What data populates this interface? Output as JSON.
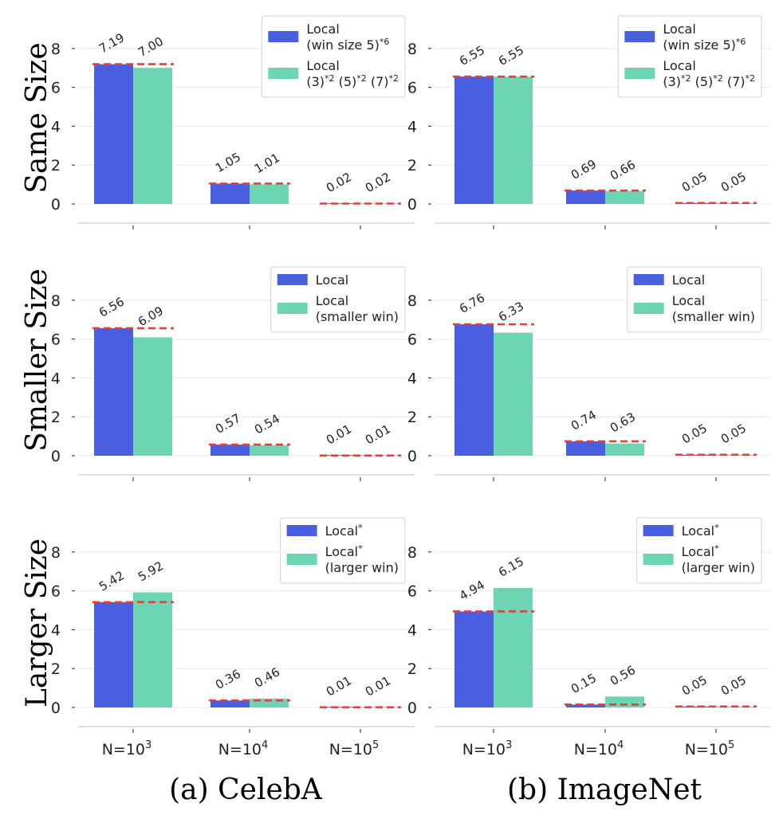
{
  "figure": {
    "row_labels": [
      "Same Size",
      "Smaller Size",
      "Larger Size"
    ],
    "captions": [
      "(a) CelebA",
      "(b) ImageNet"
    ]
  },
  "chart_data": [
    {
      "type": "bar",
      "row": 0,
      "col": 0,
      "categories": [
        {
          "base": "N=10",
          "exp": "3"
        },
        {
          "base": "N=10",
          "exp": "4"
        },
        {
          "base": "N=10",
          "exp": "5"
        }
      ],
      "show_categories": false,
      "series": [
        {
          "legend": [
            [
              {
                "t": "Local"
              }
            ],
            [
              {
                "t": "(win size 5)"
              },
              {
                "t": "*6",
                "sup": true
              }
            ]
          ],
          "values": [
            7.19,
            1.05,
            0.02
          ],
          "labels": [
            "7.19",
            "1.05",
            "0.02"
          ],
          "color": "#4a5fe0"
        },
        {
          "legend": [
            [
              {
                "t": "Local"
              }
            ],
            [
              {
                "t": "(3)"
              },
              {
                "t": "*2",
                "sup": true
              },
              {
                "t": " (5)"
              },
              {
                "t": "*2",
                "sup": true
              },
              {
                "t": " (7)"
              },
              {
                "t": "*2",
                "sup": true
              }
            ]
          ],
          "values": [
            7.0,
            1.01,
            0.02
          ],
          "labels": [
            "7.00",
            "1.01",
            "0.02"
          ],
          "color": "#6dd5b4"
        }
      ],
      "reference_line": [
        7.19,
        1.05,
        0.02
      ],
      "yticks": [
        0,
        2,
        4,
        6,
        8
      ],
      "ylim": [
        -0.9,
        9.6
      ],
      "grid": "horizontal",
      "legend_position": "top-right"
    },
    {
      "type": "bar",
      "row": 0,
      "col": 1,
      "categories": [
        {
          "base": "N=10",
          "exp": "3"
        },
        {
          "base": "N=10",
          "exp": "4"
        },
        {
          "base": "N=10",
          "exp": "5"
        }
      ],
      "show_categories": false,
      "series": [
        {
          "legend": [
            [
              {
                "t": "Local"
              }
            ],
            [
              {
                "t": "(win size 5)"
              },
              {
                "t": "*6",
                "sup": true
              }
            ]
          ],
          "values": [
            6.55,
            0.69,
            0.05
          ],
          "labels": [
            "6.55",
            "0.69",
            "0.05"
          ],
          "color": "#4a5fe0"
        },
        {
          "legend": [
            [
              {
                "t": "Local"
              }
            ],
            [
              {
                "t": "(3)"
              },
              {
                "t": "*2",
                "sup": true
              },
              {
                "t": " (5)"
              },
              {
                "t": "*2",
                "sup": true
              },
              {
                "t": " (7)"
              },
              {
                "t": "*2",
                "sup": true
              }
            ]
          ],
          "values": [
            6.55,
            0.66,
            0.05
          ],
          "labels": [
            "6.55",
            "0.66",
            "0.05"
          ],
          "color": "#6dd5b4"
        }
      ],
      "reference_line": [
        6.55,
        0.69,
        0.05
      ],
      "yticks": [
        0,
        2,
        4,
        6,
        8
      ],
      "ylim": [
        -0.9,
        9.6
      ],
      "grid": "horizontal",
      "legend_position": "top-right"
    },
    {
      "type": "bar",
      "row": 1,
      "col": 0,
      "categories": [
        {
          "base": "N=10",
          "exp": "3"
        },
        {
          "base": "N=10",
          "exp": "4"
        },
        {
          "base": "N=10",
          "exp": "5"
        }
      ],
      "show_categories": false,
      "series": [
        {
          "legend": [
            [
              {
                "t": "Local"
              }
            ]
          ],
          "values": [
            6.56,
            0.57,
            0.01
          ],
          "labels": [
            "6.56",
            "0.57",
            "0.01"
          ],
          "color": "#4a5fe0"
        },
        {
          "legend": [
            [
              {
                "t": "Local"
              }
            ],
            [
              {
                "t": "(smaller win)"
              }
            ]
          ],
          "values": [
            6.09,
            0.54,
            0.01
          ],
          "labels": [
            "6.09",
            "0.54",
            "0.01"
          ],
          "color": "#6dd5b4"
        }
      ],
      "reference_line": [
        6.56,
        0.57,
        0.01
      ],
      "yticks": [
        0,
        2,
        4,
        6,
        8
      ],
      "ylim": [
        -0.9,
        9.6
      ],
      "grid": "horizontal",
      "legend_position": "top-right"
    },
    {
      "type": "bar",
      "row": 1,
      "col": 1,
      "categories": [
        {
          "base": "N=10",
          "exp": "3"
        },
        {
          "base": "N=10",
          "exp": "4"
        },
        {
          "base": "N=10",
          "exp": "5"
        }
      ],
      "show_categories": false,
      "series": [
        {
          "legend": [
            [
              {
                "t": "Local"
              }
            ]
          ],
          "values": [
            6.76,
            0.74,
            0.05
          ],
          "labels": [
            "6.76",
            "0.74",
            "0.05"
          ],
          "color": "#4a5fe0"
        },
        {
          "legend": [
            [
              {
                "t": "Local"
              }
            ],
            [
              {
                "t": "(smaller win)"
              }
            ]
          ],
          "values": [
            6.33,
            0.63,
            0.05
          ],
          "labels": [
            "6.33",
            "0.63",
            "0.05"
          ],
          "color": "#6dd5b4"
        }
      ],
      "reference_line": [
        6.76,
        0.74,
        0.05
      ],
      "yticks": [
        0,
        2,
        4,
        6,
        8
      ],
      "ylim": [
        -0.9,
        9.6
      ],
      "grid": "horizontal",
      "legend_position": "top-right"
    },
    {
      "type": "bar",
      "row": 2,
      "col": 0,
      "categories": [
        {
          "base": "N=10",
          "exp": "3"
        },
        {
          "base": "N=10",
          "exp": "4"
        },
        {
          "base": "N=10",
          "exp": "5"
        }
      ],
      "show_categories": true,
      "series": [
        {
          "legend": [
            [
              {
                "t": "Local"
              },
              {
                "t": "*",
                "sup": true
              }
            ]
          ],
          "values": [
            5.42,
            0.36,
            0.01
          ],
          "labels": [
            "5.42",
            "0.36",
            "0.01"
          ],
          "color": "#4a5fe0"
        },
        {
          "legend": [
            [
              {
                "t": "Local"
              },
              {
                "t": "*",
                "sup": true
              }
            ],
            [
              {
                "t": "(larger win)"
              }
            ]
          ],
          "values": [
            5.92,
            0.46,
            0.01
          ],
          "labels": [
            "5.92",
            "0.46",
            "0.01"
          ],
          "color": "#6dd5b4"
        }
      ],
      "reference_line": [
        5.42,
        0.36,
        0.01
      ],
      "yticks": [
        0,
        2,
        4,
        6,
        8
      ],
      "ylim": [
        -0.9,
        9.6
      ],
      "grid": "horizontal",
      "legend_position": "top-right"
    },
    {
      "type": "bar",
      "row": 2,
      "col": 1,
      "categories": [
        {
          "base": "N=10",
          "exp": "3"
        },
        {
          "base": "N=10",
          "exp": "4"
        },
        {
          "base": "N=10",
          "exp": "5"
        }
      ],
      "show_categories": true,
      "series": [
        {
          "legend": [
            [
              {
                "t": "Local"
              },
              {
                "t": "*",
                "sup": true
              }
            ]
          ],
          "values": [
            4.94,
            0.15,
            0.05
          ],
          "labels": [
            "4.94",
            "0.15",
            "0.05"
          ],
          "color": "#4a5fe0"
        },
        {
          "legend": [
            [
              {
                "t": "Local"
              },
              {
                "t": "*",
                "sup": true
              }
            ],
            [
              {
                "t": "(larger win)"
              }
            ]
          ],
          "values": [
            6.15,
            0.56,
            0.05
          ],
          "labels": [
            "6.15",
            "0.56",
            "0.05"
          ],
          "color": "#6dd5b4"
        }
      ],
      "reference_line": [
        4.94,
        0.15,
        0.05
      ],
      "yticks": [
        0,
        2,
        4,
        6,
        8
      ],
      "ylim": [
        -0.9,
        9.6
      ],
      "grid": "horizontal",
      "legend_position": "top-right"
    }
  ],
  "style": {
    "reference_line_color": "#e0413a",
    "grid_color": "#e8e8e8",
    "axis_color": "#cccccc"
  }
}
